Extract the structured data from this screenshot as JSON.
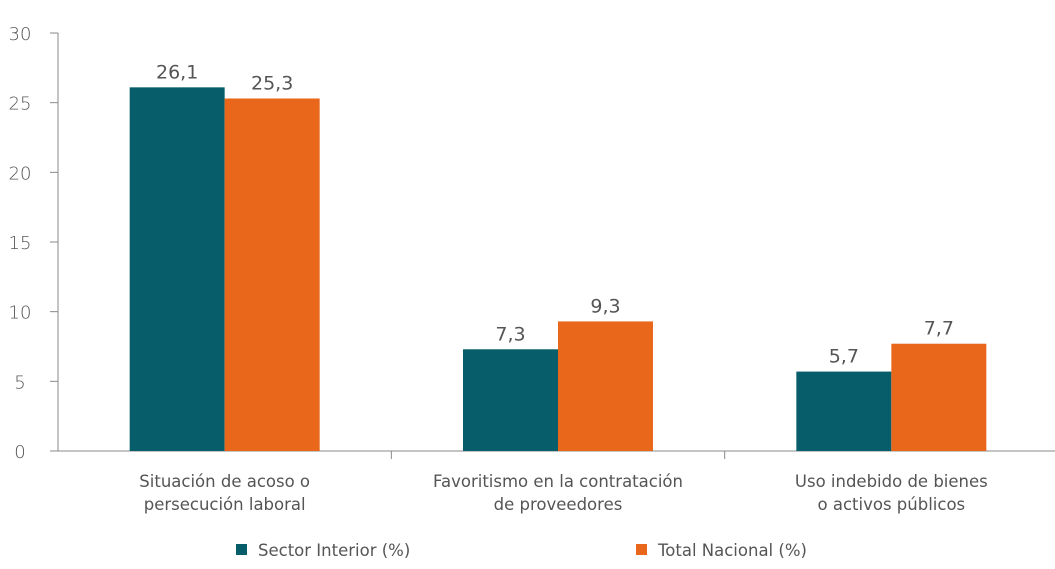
{
  "chart_data": {
    "type": "bar",
    "title": "",
    "xlabel": "",
    "ylabel": "",
    "ylim": [
      0,
      30
    ],
    "yticks": [
      "0",
      "5",
      "10",
      "15",
      "20",
      "25",
      "30"
    ],
    "categories": [
      [
        "Situación de acoso o",
        "persecución laboral"
      ],
      [
        "Favoritismo en la contratación",
        "de proveedores"
      ],
      [
        "Uso indebido de bienes",
        "o activos públicos"
      ]
    ],
    "series": [
      {
        "name": "Sector Interior (%)",
        "color": "#075e6a",
        "values": [
          26.1,
          7.3,
          5.7
        ],
        "labels": [
          "26,1",
          "7,3",
          "5,7"
        ]
      },
      {
        "name": "Total Nacional (%)",
        "color": "#e8671b",
        "values": [
          25.3,
          9.3,
          7.7
        ],
        "labels": [
          "25,3",
          "9,3",
          "7,7"
        ]
      }
    ],
    "grid": false,
    "legend_position": "bottom"
  }
}
